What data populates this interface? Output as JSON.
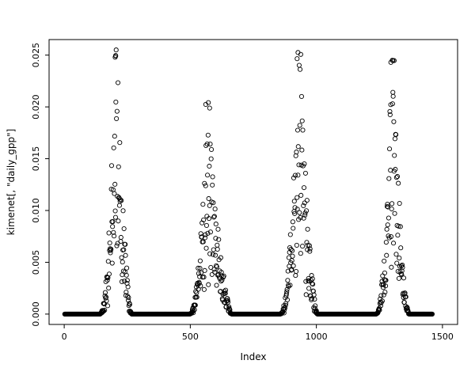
{
  "chart_data": {
    "type": "scatter",
    "title": "",
    "xlabel": "Index",
    "ylabel": "kimenet[, \"daily_gpp\"]",
    "marker": "open-circle",
    "marker_color": "#000000",
    "background": "#ffffff",
    "xlim": [
      0,
      1500
    ],
    "ylim": [
      0,
      0.025
    ],
    "x_ticks": [
      0,
      500,
      1000,
      1500
    ],
    "y_ticks": [
      0.0,
      0.005,
      0.01,
      0.015,
      0.02,
      0.025
    ],
    "grid": "off",
    "legend": "none",
    "seed": 42,
    "baseline_value": 0.0,
    "baseline_segments": [
      [
        2,
        140
      ],
      [
        268,
        495
      ],
      [
        665,
        855
      ],
      [
        1005,
        1235
      ],
      [
        1368,
        1460
      ]
    ],
    "seasonal_peaks": [
      {
        "x_start": 140,
        "x_peak": 205,
        "x_end": 268,
        "y_max": 0.0255
      },
      {
        "x_start": 495,
        "x_peak": 570,
        "x_end": 665,
        "y_max": 0.0205
      },
      {
        "x_start": 855,
        "x_peak": 930,
        "x_end": 1005,
        "y_max": 0.0253
      },
      {
        "x_start": 1235,
        "x_peak": 1300,
        "x_end": 1368,
        "y_max": 0.0245
      }
    ]
  }
}
